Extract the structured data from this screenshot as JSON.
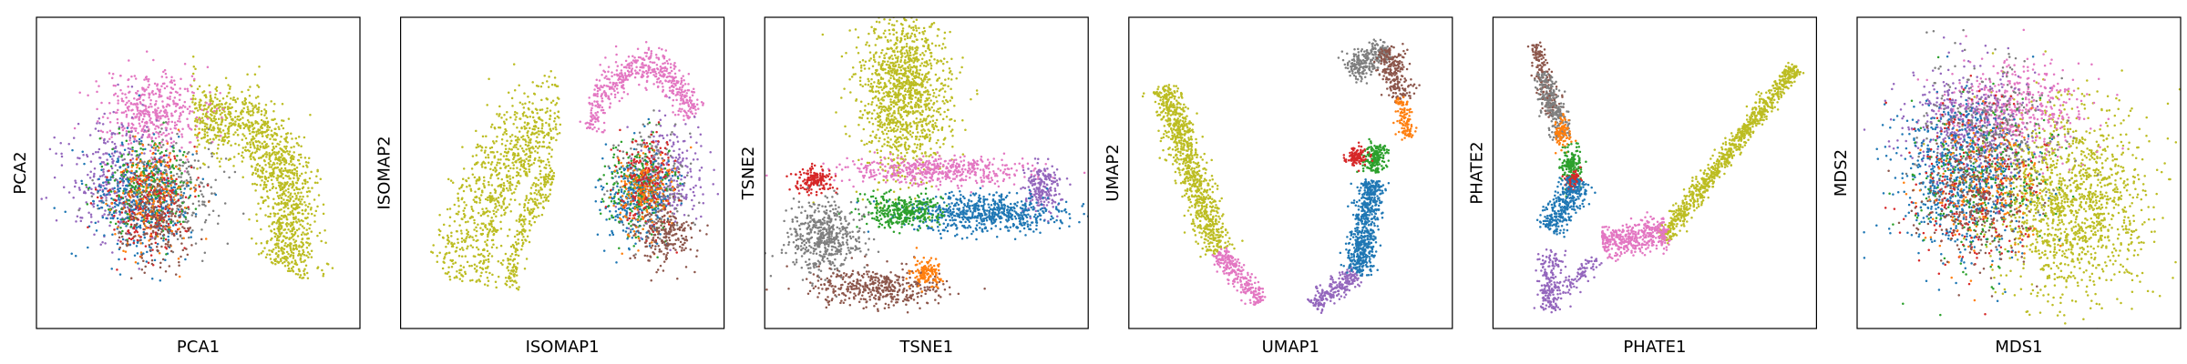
{
  "chart_data": [
    {
      "type": "scatter",
      "title": "",
      "xlabel": "PCA1",
      "ylabel": "PCA2",
      "xlim": [
        -1,
        1
      ],
      "ylim": [
        -1,
        1
      ],
      "grid": false,
      "ticks": false,
      "clusters": [
        {
          "color": "#bcbd22",
          "shape": "arc",
          "arc": {
            "cx": 0.02,
            "cy": -0.35,
            "rx": 0.62,
            "ry": 0.78,
            "a0": 95,
            "a1": -25,
            "w": 0.16
          },
          "n": 1300
        },
        {
          "color": "#e377c2",
          "cx": -0.3,
          "cy": 0.42,
          "sx": 0.16,
          "sy": 0.14,
          "n": 450
        },
        {
          "color": "#9467bd",
          "cx": -0.55,
          "cy": -0.05,
          "sx": 0.17,
          "sy": 0.2,
          "n": 320
        },
        {
          "color": "#7f7f7f",
          "cx": -0.2,
          "cy": -0.12,
          "sx": 0.17,
          "sy": 0.2,
          "n": 320
        },
        {
          "color": "#1f77b4",
          "cx": -0.38,
          "cy": -0.2,
          "sx": 0.17,
          "sy": 0.19,
          "n": 420
        },
        {
          "color": "#2ca02c",
          "cx": -0.32,
          "cy": -0.1,
          "sx": 0.15,
          "sy": 0.18,
          "n": 220
        },
        {
          "color": "#d62728",
          "cx": -0.33,
          "cy": -0.25,
          "sx": 0.14,
          "sy": 0.18,
          "n": 220
        },
        {
          "color": "#ff7f0e",
          "cx": -0.3,
          "cy": -0.15,
          "sx": 0.14,
          "sy": 0.18,
          "n": 180
        },
        {
          "color": "#8c564b",
          "cx": -0.28,
          "cy": -0.35,
          "sx": 0.13,
          "sy": 0.15,
          "n": 180
        }
      ]
    },
    {
      "type": "scatter",
      "title": "",
      "xlabel": "ISOMAP1",
      "ylabel": "ISOMAP2",
      "xlim": [
        -1,
        1
      ],
      "ylim": [
        -1,
        1
      ],
      "grid": false,
      "ticks": false,
      "clusters": [
        {
          "color": "#bcbd22",
          "shape": "arc",
          "arc": {
            "cx": 0.05,
            "cy": -0.95,
            "rx": 0.78,
            "ry": 1.4,
            "a0": 172,
            "a1": 95,
            "w": 0.1
          },
          "n": 500
        },
        {
          "color": "#bcbd22",
          "shape": "arc",
          "arc": {
            "cx": 0.1,
            "cy": -0.95,
            "rx": 0.66,
            "ry": 1.25,
            "a0": 172,
            "a1": 105,
            "w": 0.07
          },
          "n": 320
        },
        {
          "color": "#bcbd22",
          "shape": "arc",
          "arc": {
            "cx": 0.15,
            "cy": -0.95,
            "rx": 0.5,
            "ry": 1.05,
            "a0": 172,
            "a1": 115,
            "w": 0.06
          },
          "n": 240
        },
        {
          "color": "#e377c2",
          "shape": "arc",
          "arc": {
            "cx": 0.55,
            "cy": 0.2,
            "rx": 0.35,
            "ry": 0.55,
            "a0": 170,
            "a1": 20,
            "w": 0.12
          },
          "n": 520
        },
        {
          "color": "#9467bd",
          "cx": 0.72,
          "cy": -0.02,
          "sx": 0.12,
          "sy": 0.17,
          "n": 260
        },
        {
          "color": "#7f7f7f",
          "cx": 0.6,
          "cy": -0.05,
          "sx": 0.12,
          "sy": 0.18,
          "n": 240
        },
        {
          "color": "#1f77b4",
          "cx": 0.5,
          "cy": -0.18,
          "sx": 0.12,
          "sy": 0.15,
          "n": 300
        },
        {
          "color": "#2ca02c",
          "cx": 0.52,
          "cy": -0.1,
          "sx": 0.12,
          "sy": 0.16,
          "n": 200
        },
        {
          "color": "#d62728",
          "cx": 0.58,
          "cy": -0.05,
          "sx": 0.1,
          "sy": 0.18,
          "n": 200
        },
        {
          "color": "#ff7f0e",
          "cx": 0.55,
          "cy": -0.15,
          "sx": 0.1,
          "sy": 0.15,
          "n": 160
        },
        {
          "color": "#8c564b",
          "cx": 0.7,
          "cy": -0.45,
          "sx": 0.1,
          "sy": 0.1,
          "n": 220
        }
      ]
    },
    {
      "type": "scatter",
      "title": "",
      "xlabel": "TSNE1",
      "ylabel": "TSNE2",
      "xlim": [
        -1,
        1
      ],
      "ylim": [
        -1,
        1
      ],
      "grid": false,
      "ticks": false,
      "clusters": [
        {
          "color": "#bcbd22",
          "cx": -0.15,
          "cy": 0.58,
          "sx": 0.15,
          "sy": 0.3,
          "n": 1300
        },
        {
          "color": "#e377c2",
          "cx": 0.08,
          "cy": 0.02,
          "sx": 0.3,
          "sy": 0.05,
          "n": 500
        },
        {
          "color": "#9467bd",
          "cx": 0.78,
          "cy": -0.1,
          "sx": 0.06,
          "sy": 0.08,
          "n": 220
        },
        {
          "color": "#1f77b4",
          "cx": 0.4,
          "cy": -0.28,
          "sx": 0.26,
          "sy": 0.07,
          "n": 650
        },
        {
          "color": "#2ca02c",
          "cx": -0.15,
          "cy": -0.27,
          "sx": 0.13,
          "sy": 0.06,
          "n": 330
        },
        {
          "color": "#d62728",
          "cx": -0.75,
          "cy": -0.05,
          "sx": 0.06,
          "sy": 0.04,
          "n": 170
        },
        {
          "color": "#7f7f7f",
          "cx": -0.68,
          "cy": -0.45,
          "sx": 0.12,
          "sy": 0.13,
          "n": 520
        },
        {
          "color": "#8c564b",
          "cx": -0.33,
          "cy": -0.8,
          "sx": 0.22,
          "sy": 0.07,
          "n": 420
        },
        {
          "color": "#ff7f0e",
          "cx": 0.0,
          "cy": -0.7,
          "sx": 0.05,
          "sy": 0.05,
          "n": 130
        }
      ]
    },
    {
      "type": "scatter",
      "title": "",
      "xlabel": "UMAP1",
      "ylabel": "UMAP2",
      "xlim": [
        -1,
        1
      ],
      "ylim": [
        -1,
        1
      ],
      "grid": false,
      "ticks": false,
      "clusters": [
        {
          "color": "#bcbd22",
          "shape": "line",
          "line": {
            "x0": -0.85,
            "y0": 0.6,
            "x1": -0.48,
            "y1": -0.55,
            "w": 0.05
          },
          "n": 900
        },
        {
          "color": "#e377c2",
          "shape": "line",
          "line": {
            "x0": -0.48,
            "y0": -0.55,
            "x1": -0.2,
            "y1": -0.9,
            "w": 0.035
          },
          "n": 260
        },
        {
          "color": "#9467bd",
          "shape": "line",
          "line": {
            "x0": 0.15,
            "y0": -0.92,
            "x1": 0.45,
            "y1": -0.7,
            "w": 0.035
          },
          "n": 220
        },
        {
          "color": "#1f77b4",
          "shape": "line",
          "line": {
            "x0": 0.45,
            "y0": -0.7,
            "x1": 0.55,
            "y1": -0.05,
            "w": 0.045
          },
          "n": 620
        },
        {
          "color": "#2ca02c",
          "cx": 0.57,
          "cy": 0.1,
          "sx": 0.04,
          "sy": 0.05,
          "n": 190
        },
        {
          "color": "#d62728",
          "cx": 0.44,
          "cy": 0.11,
          "sx": 0.035,
          "sy": 0.03,
          "n": 110
        },
        {
          "color": "#7f7f7f",
          "shape": "line",
          "line": {
            "x0": 0.4,
            "y0": 0.7,
            "x1": 0.65,
            "y1": 0.87,
            "w": 0.05
          },
          "n": 260
        },
        {
          "color": "#8c564b",
          "shape": "line",
          "line": {
            "x0": 0.65,
            "y0": 0.87,
            "x1": 0.74,
            "y1": 0.52,
            "w": 0.045
          },
          "n": 230
        },
        {
          "color": "#ff7f0e",
          "shape": "line",
          "line": {
            "x0": 0.74,
            "y0": 0.52,
            "x1": 0.79,
            "y1": 0.25,
            "w": 0.025
          },
          "n": 110
        }
      ]
    },
    {
      "type": "scatter",
      "title": "",
      "xlabel": "PHATE1",
      "ylabel": "PHATE2",
      "xlim": [
        -1,
        1
      ],
      "ylim": [
        -1,
        1
      ],
      "grid": false,
      "ticks": false,
      "clusters": [
        {
          "color": "#bcbd22",
          "shape": "line",
          "line": {
            "x0": 0.05,
            "y0": -0.45,
            "x1": 0.95,
            "y1": 0.75,
            "w": 0.03
          },
          "n": 900
        },
        {
          "color": "#e377c2",
          "shape": "line",
          "line": {
            "x0": -0.35,
            "y0": -0.5,
            "x1": 0.08,
            "y1": -0.4,
            "w": 0.05
          },
          "n": 420
        },
        {
          "color": "#8c564b",
          "shape": "line",
          "line": {
            "x0": -0.8,
            "y0": 0.9,
            "x1": -0.68,
            "y1": 0.4,
            "w": 0.03
          },
          "n": 180
        },
        {
          "color": "#7f7f7f",
          "shape": "line",
          "line": {
            "x0": -0.76,
            "y0": 0.7,
            "x1": -0.62,
            "y1": 0.25,
            "w": 0.04
          },
          "n": 260
        },
        {
          "color": "#ff7f0e",
          "cx": -0.62,
          "cy": 0.28,
          "sx": 0.03,
          "sy": 0.05,
          "n": 100
        },
        {
          "color": "#2ca02c",
          "cx": -0.56,
          "cy": 0.05,
          "sx": 0.04,
          "sy": 0.07,
          "n": 170
        },
        {
          "color": "#d62728",
          "cx": -0.55,
          "cy": -0.05,
          "sx": 0.03,
          "sy": 0.03,
          "n": 80
        },
        {
          "color": "#1f77b4",
          "shape": "line",
          "line": {
            "x0": -0.5,
            "y0": -0.05,
            "x1": -0.72,
            "y1": -0.4,
            "w": 0.05
          },
          "n": 330
        },
        {
          "color": "#9467bd",
          "shape": "line",
          "line": {
            "x0": -0.7,
            "y0": -0.55,
            "x1": -0.72,
            "y1": -0.95,
            "w": 0.04
          },
          "n": 170
        },
        {
          "color": "#9467bd",
          "shape": "line",
          "line": {
            "x0": -0.72,
            "y0": -0.95,
            "x1": -0.4,
            "y1": -0.6,
            "w": 0.03
          },
          "n": 100
        }
      ]
    },
    {
      "type": "scatter",
      "title": "",
      "xlabel": "MDS1",
      "ylabel": "MDS2",
      "xlim": [
        -1,
        1
      ],
      "ylim": [
        -1,
        1
      ],
      "grid": false,
      "ticks": false,
      "clusters": [
        {
          "color": "#bcbd22",
          "cx": 0.35,
          "cy": -0.22,
          "sx": 0.26,
          "sy": 0.32,
          "n": 1400
        },
        {
          "color": "#e377c2",
          "cx": 0.0,
          "cy": 0.45,
          "sx": 0.22,
          "sy": 0.17,
          "n": 500
        },
        {
          "color": "#9467bd",
          "cx": -0.35,
          "cy": 0.35,
          "sx": 0.2,
          "sy": 0.2,
          "n": 450
        },
        {
          "color": "#7f7f7f",
          "cx": -0.2,
          "cy": 0.25,
          "sx": 0.22,
          "sy": 0.25,
          "n": 350
        },
        {
          "color": "#1f77b4",
          "cx": -0.38,
          "cy": -0.05,
          "sx": 0.22,
          "sy": 0.27,
          "n": 650
        },
        {
          "color": "#2ca02c",
          "cx": -0.25,
          "cy": -0.05,
          "sx": 0.22,
          "sy": 0.28,
          "n": 250
        },
        {
          "color": "#d62728",
          "cx": -0.28,
          "cy": -0.1,
          "sx": 0.22,
          "sy": 0.28,
          "n": 250
        },
        {
          "color": "#ff7f0e",
          "cx": -0.25,
          "cy": -0.1,
          "sx": 0.22,
          "sy": 0.25,
          "n": 180
        },
        {
          "color": "#8c564b",
          "cx": -0.3,
          "cy": -0.2,
          "sx": 0.2,
          "sy": 0.22,
          "n": 250
        }
      ]
    }
  ]
}
